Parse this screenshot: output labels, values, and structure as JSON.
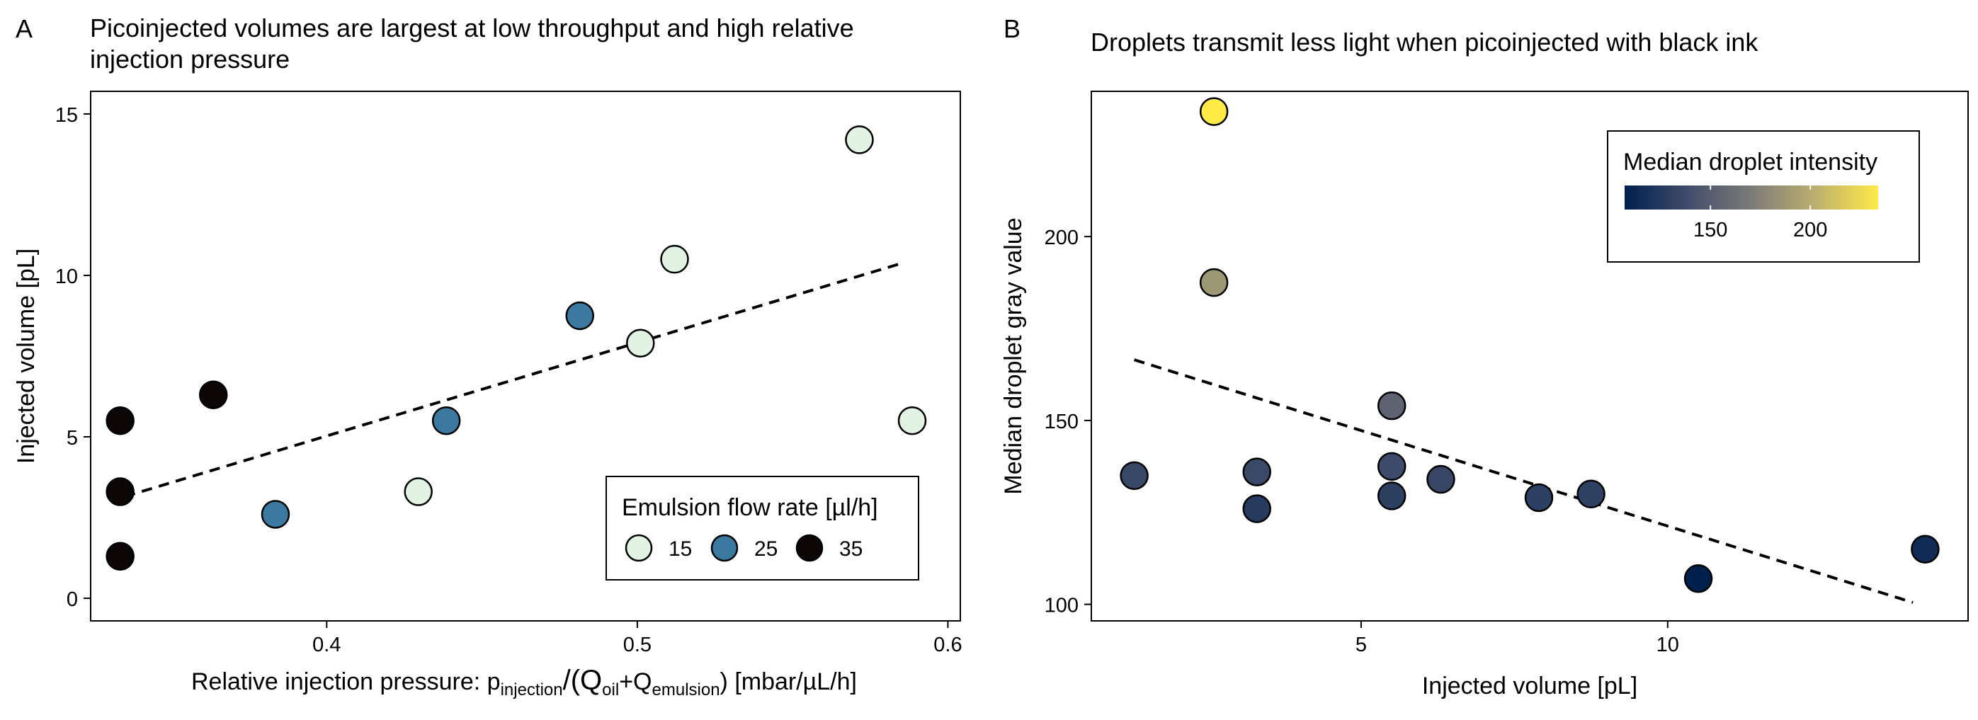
{
  "chart_data": [
    {
      "type": "scatter",
      "panel_tag": "A",
      "title": "Picoinjected volumes are largest at low throughput and high relative injection pressure",
      "title_lines": [
        "Picoinjected volumes are largest at low throughput and high relative",
        "injection pressure"
      ],
      "xlabel": {
        "prefix": "Relative injection pressure: p",
        "p_sub": "injection",
        "slash_paren": "/(Q",
        "q_sub1": "oil",
        "plus": "+Q",
        "q_sub2": "emulsion",
        "suffix": ") [mbar/µL/h]"
      },
      "ylabel": "Injected volume [pL]",
      "xlim": [
        0.324,
        0.604
      ],
      "ylim": [
        -0.7,
        15.7
      ],
      "x_ticks": [
        0.4,
        0.5,
        0.6
      ],
      "x_tick_labels": [
        "0.4",
        "0.5",
        "0.6"
      ],
      "y_ticks": [
        0,
        5,
        10,
        15
      ],
      "y_tick_labels": [
        "0",
        "5",
        "10",
        "15"
      ],
      "trend_line": {
        "style": "dashed",
        "x": [
          0.335,
          0.586
        ],
        "y": [
          3.15,
          10.4
        ]
      },
      "legend": {
        "title": "Emulsion flow rate [µl/h]",
        "placement": "bottom-right",
        "entries": [
          {
            "label": "15",
            "color": "#e2f3e3"
          },
          {
            "label": "25",
            "color": "#3b79a1"
          },
          {
            "label": "35",
            "color": "#0c0607"
          }
        ]
      },
      "points": [
        {
          "x": 0.3335,
          "y": 5.5,
          "flow": "35"
        },
        {
          "x": 0.3335,
          "y": 3.3,
          "flow": "35"
        },
        {
          "x": 0.3335,
          "y": 1.3,
          "flow": "35"
        },
        {
          "x": 0.3635,
          "y": 6.3,
          "flow": "35"
        },
        {
          "x": 0.3835,
          "y": 2.6,
          "flow": "25"
        },
        {
          "x": 0.4385,
          "y": 5.5,
          "flow": "25"
        },
        {
          "x": 0.4815,
          "y": 8.75,
          "flow": "25"
        },
        {
          "x": 0.4295,
          "y": 3.3,
          "flow": "15"
        },
        {
          "x": 0.501,
          "y": 7.9,
          "flow": "15"
        },
        {
          "x": 0.512,
          "y": 10.5,
          "flow": "15"
        },
        {
          "x": 0.5715,
          "y": 14.2,
          "flow": "15"
        },
        {
          "x": 0.5885,
          "y": 5.5,
          "flow": "15"
        }
      ]
    },
    {
      "type": "scatter",
      "panel_tag": "B",
      "title": "Droplets transmit less light when picoinjected with black ink",
      "xlabel": "Injected volume [pL]",
      "ylabel": "Median droplet gray value",
      "xlim": [
        0.6,
        14.9
      ],
      "ylim": [
        95.5,
        239.5
      ],
      "x_ticks": [
        5,
        10
      ],
      "x_tick_labels": [
        "5",
        "10"
      ],
      "y_ticks": [
        100,
        150,
        200
      ],
      "y_tick_labels": [
        "100",
        "150",
        "200"
      ],
      "trend_line": {
        "style": "dashed",
        "x": [
          1.3,
          14.0
        ],
        "y": [
          166.5,
          100.5
        ]
      },
      "colorbar": {
        "title": "Median droplet intensity",
        "placement": "top-right",
        "min": 107,
        "max": 234,
        "ticks": [
          150,
          200
        ],
        "tick_labels": [
          "150",
          "200"
        ],
        "colors": [
          "#00204d",
          "#414d6b",
          "#7c7b78",
          "#bcaf6f",
          "#ffea46"
        ]
      },
      "points": [
        {
          "x": 1.3,
          "y": 135
        },
        {
          "x": 2.6,
          "y": 234
        },
        {
          "x": 2.6,
          "y": 187.5
        },
        {
          "x": 3.3,
          "y": 136
        },
        {
          "x": 3.3,
          "y": 126
        },
        {
          "x": 5.5,
          "y": 154
        },
        {
          "x": 5.5,
          "y": 137.5
        },
        {
          "x": 5.5,
          "y": 129.5
        },
        {
          "x": 6.3,
          "y": 134
        },
        {
          "x": 7.9,
          "y": 129
        },
        {
          "x": 8.75,
          "y": 130
        },
        {
          "x": 10.5,
          "y": 107
        },
        {
          "x": 14.2,
          "y": 115
        }
      ]
    }
  ]
}
